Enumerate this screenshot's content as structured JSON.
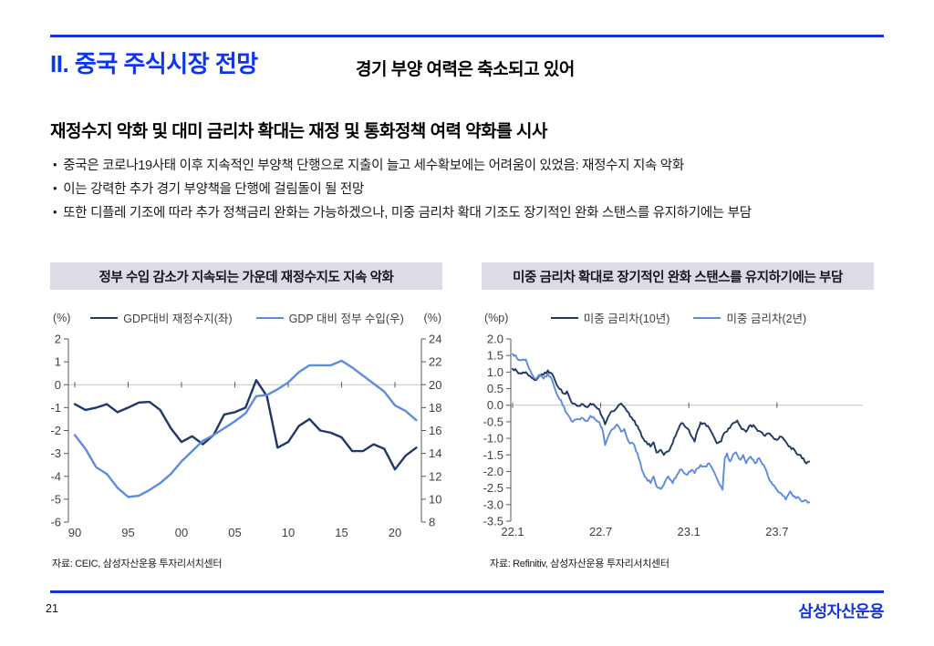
{
  "page": {
    "title": "II. 중국 주식시장 전망",
    "subtitle": "경기 부양 여력은 축소되고 있어",
    "heading": "재정수지 악화 및 대미 금리차 확대는 재정 및 통화정책 여력 약화를 시사",
    "bullets": [
      "중국은 코로나19사태 이후 지속적인 부양책 단행으로 지출이 늘고 세수확보에는 어려움이 있었음: 재정수지 지속 악화",
      "이는 강력한 추가 경기 부양책을 단행에 걸림돌이 될 전망",
      "또한 디플레 기조에 따라 추가 정책금리 완화는 가능하겠으나, 미중 금리차 확대 기조도 장기적인 완화 스탠스를 유지하기에는 부담"
    ],
    "page_number": "21",
    "logo": "삼성자산운용",
    "colors": {
      "accent_rule": "#1434cb",
      "title_blue": "#0c36ee",
      "logo_blue": "#1434d8",
      "navy": "#1f3864",
      "light_blue": "#5c8be0",
      "panel_header_bg": "#dbdce6",
      "gridline": "#c3c3c3",
      "axis": "#595959",
      "tick_text": "#3f3f3f"
    }
  },
  "chart_data": [
    {
      "type": "line",
      "title": "정부 수입 감소가 지속되는 가운데 재정수지도 지속 악화",
      "unit_left": "(%)",
      "unit_right": "(%)",
      "legend_position": "top",
      "grid": "zero-line-only",
      "x_origin": 1990,
      "x_ticks": [
        {
          "v": 1990,
          "label": "90"
        },
        {
          "v": 1995,
          "label": "95"
        },
        {
          "v": 2000,
          "label": "00"
        },
        {
          "v": 2005,
          "label": "05"
        },
        {
          "v": 2010,
          "label": "10"
        },
        {
          "v": 2015,
          "label": "15"
        },
        {
          "v": 2020,
          "label": "20"
        }
      ],
      "y_left": {
        "min": -6,
        "max": 2,
        "ticks": [
          {
            "v": 2,
            "label": "2"
          },
          {
            "v": 1,
            "label": "1"
          },
          {
            "v": 0,
            "label": "0"
          },
          {
            "v": -1,
            "label": "-1"
          },
          {
            "v": -2,
            "label": "-2"
          },
          {
            "v": -3,
            "label": "-3"
          },
          {
            "v": -4,
            "label": "-4"
          },
          {
            "v": -5,
            "label": "-5"
          },
          {
            "v": -6,
            "label": "-6"
          }
        ]
      },
      "y_right": {
        "min": 8,
        "max": 24,
        "ticks": [
          {
            "v": 24,
            "label": "24"
          },
          {
            "v": 22,
            "label": "22"
          },
          {
            "v": 20,
            "label": "20"
          },
          {
            "v": 18,
            "label": "18"
          },
          {
            "v": 16,
            "label": "16"
          },
          {
            "v": 14,
            "label": "14"
          },
          {
            "v": 12,
            "label": "12"
          },
          {
            "v": 10,
            "label": "10"
          },
          {
            "v": 8,
            "label": "8"
          }
        ]
      },
      "zero": 0,
      "series": [
        {
          "name": "GDP대비 재정수지(좌)",
          "axis": "left",
          "color": "#1f3864",
          "x_start": 1990,
          "x_step": 1,
          "values": [
            -0.85,
            -1.1,
            -1.0,
            -0.85,
            -1.2,
            -1.0,
            -0.78,
            -0.75,
            -1.1,
            -1.9,
            -2.5,
            -2.25,
            -2.6,
            -2.2,
            -1.3,
            -1.2,
            -1.0,
            0.2,
            -0.5,
            -2.75,
            -2.5,
            -1.8,
            -1.5,
            -2.0,
            -2.1,
            -2.3,
            -2.9,
            -2.9,
            -2.6,
            -2.8,
            -3.7,
            -3.1,
            -2.75
          ]
        },
        {
          "name": "GDP 대비 정부 수입(우)",
          "axis": "right",
          "color": "#5c8be0",
          "x_start": 1990,
          "x_step": 1,
          "values": [
            15.6,
            14.4,
            12.8,
            12.2,
            11.0,
            10.2,
            10.3,
            10.8,
            11.4,
            12.2,
            13.3,
            14.2,
            15.1,
            15.6,
            16.2,
            16.8,
            17.5,
            19.0,
            19.1,
            19.6,
            20.2,
            21.1,
            21.7,
            21.7,
            21.7,
            22.1,
            21.5,
            20.8,
            20.1,
            19.4,
            18.2,
            17.7,
            16.9
          ]
        }
      ],
      "source": "자료: CEIC, 삼성자산운용 투자리서치센터"
    },
    {
      "type": "line",
      "title": "미중 금리차 확대로 장기적인 완화 스탠스를 유지하기에는 부담",
      "unit_left": "(%p)",
      "legend_position": "top",
      "grid": "zero-line-only",
      "x_origin": 0,
      "x_unit": "months since 2022-01",
      "x_ticks": [
        {
          "v": 0,
          "label": "22.1"
        },
        {
          "v": 6,
          "label": "22.7"
        },
        {
          "v": 12,
          "label": "23.1"
        },
        {
          "v": 18,
          "label": "23.7"
        }
      ],
      "y_left": {
        "min": -3.5,
        "max": 2,
        "ticks": [
          {
            "v": 2,
            "label": "2.0"
          },
          {
            "v": 1.5,
            "label": "1.5"
          },
          {
            "v": 1,
            "label": "1.0"
          },
          {
            "v": 0.5,
            "label": "0.5"
          },
          {
            "v": 0,
            "label": "0.0"
          },
          {
            "v": -0.5,
            "label": "-0.5"
          },
          {
            "v": -1,
            "label": "-1.0"
          },
          {
            "v": -1.5,
            "label": "-1.5"
          },
          {
            "v": -2,
            "label": "-2.0"
          },
          {
            "v": -2.5,
            "label": "-2.5"
          },
          {
            "v": -3,
            "label": "-3.0"
          },
          {
            "v": -3.5,
            "label": "-3.5"
          }
        ]
      },
      "zero": 0,
      "series": [
        {
          "name": "미중 금리차(10년)",
          "axis": "left",
          "color": "#1f3864",
          "style": "daily",
          "points": [
            [
              0,
              1.1
            ],
            [
              0.3,
              1.02
            ],
            [
              0.6,
              0.95
            ],
            [
              0.9,
              1.0
            ],
            [
              1.2,
              0.88
            ],
            [
              1.5,
              0.76
            ],
            [
              1.8,
              0.88
            ],
            [
              2.1,
              0.92
            ],
            [
              2.4,
              1.05
            ],
            [
              2.6,
              0.98
            ],
            [
              2.8,
              0.85
            ],
            [
              3.0,
              0.62
            ],
            [
              3.3,
              0.48
            ],
            [
              3.5,
              0.35
            ],
            [
              3.7,
              0.42
            ],
            [
              3.9,
              0.2
            ],
            [
              4.1,
              0.05
            ],
            [
              4.4,
              -0.02
            ],
            [
              4.7,
              0.04
            ],
            [
              5.0,
              -0.05
            ],
            [
              5.3,
              0.05
            ],
            [
              5.6,
              -0.02
            ],
            [
              5.9,
              -0.12
            ],
            [
              6.1,
              -0.35
            ],
            [
              6.3,
              -0.58
            ],
            [
              6.5,
              -0.35
            ],
            [
              6.8,
              -0.18
            ],
            [
              7.1,
              -0.08
            ],
            [
              7.4,
              0.05
            ],
            [
              7.6,
              -0.05
            ],
            [
              7.9,
              -0.22
            ],
            [
              8.2,
              -0.45
            ],
            [
              8.5,
              -0.62
            ],
            [
              8.8,
              -0.95
            ],
            [
              9.1,
              -1.1
            ],
            [
              9.4,
              -1.25
            ],
            [
              9.6,
              -1.12
            ],
            [
              9.8,
              -1.43
            ],
            [
              10.1,
              -1.35
            ],
            [
              10.3,
              -1.5
            ],
            [
              10.6,
              -1.4
            ],
            [
              10.9,
              -1.15
            ],
            [
              11.2,
              -0.8
            ],
            [
              11.4,
              -0.6
            ],
            [
              11.6,
              -0.55
            ],
            [
              11.9,
              -0.7
            ],
            [
              12.2,
              -0.95
            ],
            [
              12.4,
              -1.1
            ],
            [
              12.6,
              -0.75
            ],
            [
              12.8,
              -0.52
            ],
            [
              13.1,
              -0.55
            ],
            [
              13.4,
              -0.7
            ],
            [
              13.7,
              -0.95
            ],
            [
              13.9,
              -1.15
            ],
            [
              14.2,
              -1.1
            ],
            [
              14.4,
              -0.85
            ],
            [
              14.7,
              -0.7
            ],
            [
              15.0,
              -0.55
            ],
            [
              15.3,
              -0.46
            ],
            [
              15.6,
              -0.72
            ],
            [
              15.9,
              -0.8
            ],
            [
              16.2,
              -0.6
            ],
            [
              16.5,
              -0.66
            ],
            [
              16.8,
              -0.78
            ],
            [
              17.1,
              -0.9
            ],
            [
              17.4,
              -0.85
            ],
            [
              17.7,
              -0.95
            ],
            [
              18.0,
              -1.05
            ],
            [
              18.3,
              -0.95
            ],
            [
              18.6,
              -1.1
            ],
            [
              18.9,
              -1.25
            ],
            [
              19.2,
              -1.35
            ],
            [
              19.5,
              -1.5
            ],
            [
              19.8,
              -1.6
            ],
            [
              20.0,
              -1.76
            ],
            [
              20.2,
              -1.7
            ]
          ]
        },
        {
          "name": "미중 금리차(2년)",
          "axis": "left",
          "color": "#5c8be0",
          "style": "daily",
          "points": [
            [
              0,
              1.55
            ],
            [
              0.3,
              1.42
            ],
            [
              0.6,
              1.35
            ],
            [
              0.9,
              1.38
            ],
            [
              1.2,
              1.05
            ],
            [
              1.5,
              0.8
            ],
            [
              1.8,
              0.92
            ],
            [
              2.1,
              0.8
            ],
            [
              2.4,
              0.95
            ],
            [
              2.6,
              0.85
            ],
            [
              2.8,
              0.6
            ],
            [
              3.0,
              0.35
            ],
            [
              3.3,
              0.15
            ],
            [
              3.5,
              -0.05
            ],
            [
              3.7,
              -0.25
            ],
            [
              3.9,
              -0.38
            ],
            [
              4.1,
              -0.5
            ],
            [
              4.4,
              -0.42
            ],
            [
              4.7,
              -0.38
            ],
            [
              5.0,
              -0.48
            ],
            [
              5.3,
              -0.32
            ],
            [
              5.6,
              -0.42
            ],
            [
              5.9,
              -0.5
            ],
            [
              6.1,
              -0.7
            ],
            [
              6.3,
              -1.2
            ],
            [
              6.5,
              -0.95
            ],
            [
              6.8,
              -0.72
            ],
            [
              7.1,
              -0.58
            ],
            [
              7.4,
              -0.8
            ],
            [
              7.6,
              -0.72
            ],
            [
              7.9,
              -1.1
            ],
            [
              8.2,
              -1.15
            ],
            [
              8.5,
              -1.45
            ],
            [
              8.8,
              -1.95
            ],
            [
              9.1,
              -2.2
            ],
            [
              9.4,
              -2.35
            ],
            [
              9.6,
              -2.15
            ],
            [
              9.8,
              -2.45
            ],
            [
              10.1,
              -2.53
            ],
            [
              10.3,
              -2.4
            ],
            [
              10.6,
              -2.15
            ],
            [
              10.9,
              -2.35
            ],
            [
              11.2,
              -2.1
            ],
            [
              11.4,
              -1.95
            ],
            [
              11.6,
              -2.0
            ],
            [
              11.9,
              -2.1
            ],
            [
              12.2,
              -1.95
            ],
            [
              12.4,
              -2.05
            ],
            [
              12.6,
              -1.9
            ],
            [
              12.8,
              -1.8
            ],
            [
              13.1,
              -1.85
            ],
            [
              13.4,
              -1.76
            ],
            [
              13.7,
              -2.0
            ],
            [
              13.9,
              -2.2
            ],
            [
              14.1,
              -2.4
            ],
            [
              14.3,
              -2.55
            ],
            [
              14.45,
              -1.6
            ],
            [
              14.6,
              -1.45
            ],
            [
              14.8,
              -1.7
            ],
            [
              15.0,
              -1.5
            ],
            [
              15.2,
              -1.42
            ],
            [
              15.5,
              -1.65
            ],
            [
              15.7,
              -1.5
            ],
            [
              15.9,
              -1.75
            ],
            [
              16.2,
              -1.55
            ],
            [
              16.5,
              -1.75
            ],
            [
              16.8,
              -1.6
            ],
            [
              17.1,
              -1.8
            ],
            [
              17.4,
              -2.15
            ],
            [
              17.7,
              -2.4
            ],
            [
              18.0,
              -2.55
            ],
            [
              18.3,
              -2.67
            ],
            [
              18.6,
              -2.85
            ],
            [
              18.9,
              -2.6
            ],
            [
              19.2,
              -2.75
            ],
            [
              19.5,
              -2.8
            ],
            [
              19.8,
              -2.9
            ],
            [
              20.0,
              -2.88
            ],
            [
              20.2,
              -2.93
            ]
          ]
        }
      ],
      "source": "자료: Refinitiv, 삼성자산운용 투자리서치센터"
    }
  ]
}
